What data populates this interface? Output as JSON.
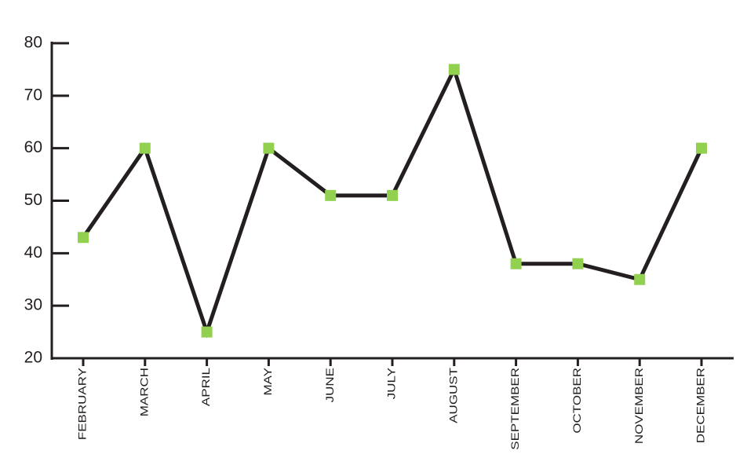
{
  "chart_data": {
    "type": "line",
    "categories": [
      "FEBRUARY",
      "MARCH",
      "APRIL",
      "MAY",
      "JUNE",
      "JULY",
      "AUGUST",
      "SEPTEMBER",
      "OCTOBER",
      "NOVEMBER",
      "DECEMBER"
    ],
    "values": [
      43,
      60,
      25,
      60,
      51,
      51,
      75,
      38,
      38,
      35,
      60
    ],
    "color": "#231f20",
    "marker_color": "#92d050",
    "ylim": [
      20,
      80
    ],
    "yticks": [
      20,
      30,
      40,
      50,
      60,
      70,
      80
    ]
  }
}
